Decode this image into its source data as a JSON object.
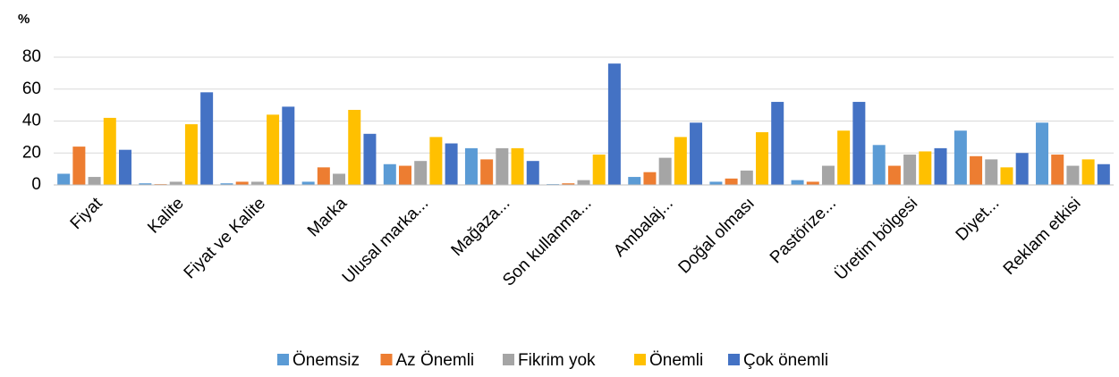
{
  "chart_data": {
    "type": "bar",
    "y_label": "%",
    "categories": [
      "Fiyat",
      "Kalite",
      "Fiyat ve Kalite",
      "Marka",
      "Ulusal marka...",
      "Mağaza...",
      "Son kullanma...",
      "Ambalaj...",
      "Doğal olması",
      "Pastörize...",
      "Üretim bölgesi",
      "Diyet...",
      "Reklam etkisi"
    ],
    "series": [
      {
        "name": "Önemsiz",
        "color": "#5b9bd5",
        "values": [
          7,
          1,
          1,
          2,
          13,
          23,
          0.5,
          5,
          2,
          3,
          25,
          34,
          39
        ]
      },
      {
        "name": "Az Önemli",
        "color": "#ed7d31",
        "values": [
          24,
          0.5,
          2,
          11,
          12,
          16,
          1,
          8,
          4,
          2,
          12,
          18,
          19
        ]
      },
      {
        "name": "Fikrim yok",
        "color": "#a5a5a5",
        "values": [
          5,
          2,
          2,
          7,
          15,
          23,
          3,
          17,
          9,
          12,
          19,
          16,
          12
        ]
      },
      {
        "name": "Önemli",
        "color": "#ffc000",
        "values": [
          42,
          38,
          44,
          47,
          30,
          23,
          19,
          30,
          33,
          34,
          21,
          11,
          16
        ]
      },
      {
        "name": "Çok önemli",
        "color": "#4472c4",
        "values": [
          22,
          58,
          49,
          32,
          26,
          15,
          76,
          39,
          52,
          52,
          23,
          20,
          13
        ]
      }
    ],
    "ylim": [
      0,
      80
    ],
    "yticks": [
      0,
      20,
      40,
      60,
      80
    ],
    "grid": true,
    "legend": "bottom"
  }
}
